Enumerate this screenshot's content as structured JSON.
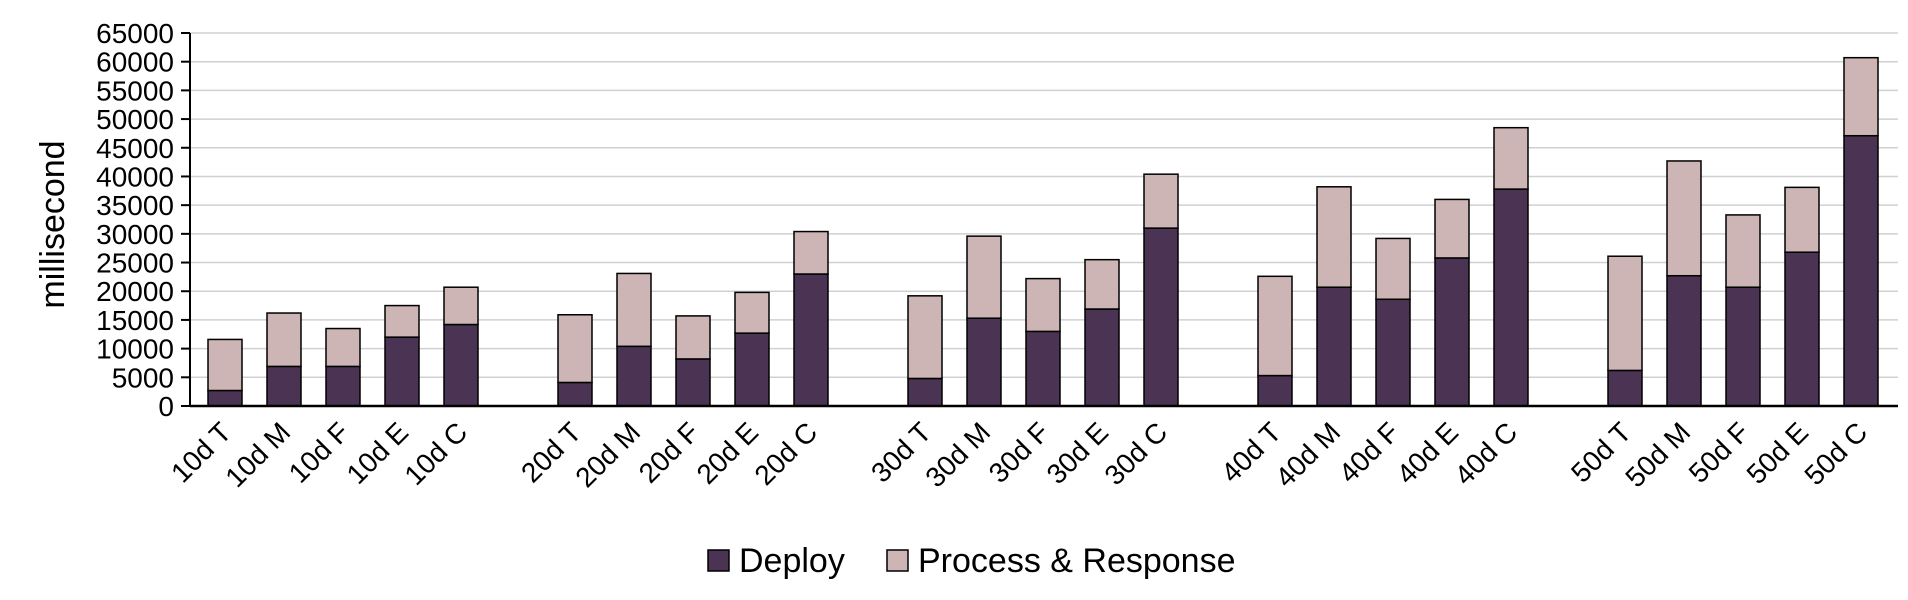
{
  "chart_data": {
    "type": "bar",
    "stacked": true,
    "title": "",
    "xlabel": "",
    "ylabel": "millisecond",
    "ylim": [
      0,
      65000
    ],
    "yticks": [
      0,
      5000,
      10000,
      15000,
      20000,
      25000,
      30000,
      35000,
      40000,
      45000,
      50000,
      55000,
      60000,
      65000
    ],
    "grid": true,
    "legend_position": "bottom",
    "groups": [
      [
        "10d T",
        "10d M",
        "10d F",
        "10d E",
        "10d C"
      ],
      [
        "20d T",
        "20d M",
        "20d F",
        "20d E",
        "20d C"
      ],
      [
        "30d T",
        "30d M",
        "30d F",
        "30d E",
        "30d C"
      ],
      [
        "40d T",
        "40d M",
        "40d F",
        "40d E",
        "40d C"
      ],
      [
        "50d T",
        "50d M",
        "50d F",
        "50d E",
        "50d C"
      ]
    ],
    "categories": [
      "10d T",
      "10d M",
      "10d F",
      "10d E",
      "10d C",
      "20d T",
      "20d M",
      "20d F",
      "20d E",
      "20d C",
      "30d T",
      "30d M",
      "30d F",
      "30d E",
      "30d C",
      "40d T",
      "40d M",
      "40d F",
      "40d E",
      "40d C",
      "50d T",
      "50d M",
      "50d F",
      "50d E",
      "50d C"
    ],
    "series": [
      {
        "name": "Deploy",
        "color": "#4a3353",
        "values": [
          2700,
          6900,
          6900,
          12000,
          14200,
          4100,
          10400,
          8200,
          12700,
          23000,
          4800,
          15300,
          13000,
          16900,
          31000,
          5300,
          20700,
          18600,
          25800,
          37800,
          6200,
          22700,
          20700,
          26800,
          47100
        ]
      },
      {
        "name": "Process & Response",
        "color": "#cdb4b5",
        "values": [
          8900,
          9300,
          6600,
          5500,
          6500,
          11800,
          12700,
          7500,
          7100,
          7400,
          14400,
          14300,
          9200,
          8600,
          9400,
          17300,
          17500,
          10600,
          10200,
          10700,
          19900,
          20000,
          12600,
          11300,
          13600
        ]
      }
    ]
  }
}
